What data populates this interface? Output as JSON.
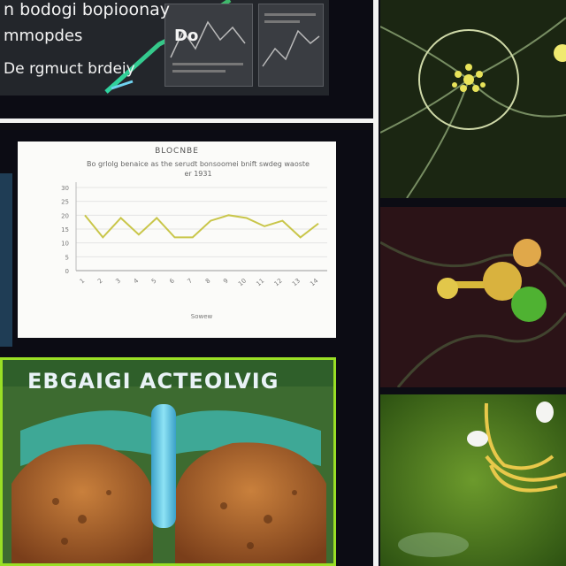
{
  "slide_top": {
    "line1": "n bodogi bopioonay",
    "line2": "mmopdes",
    "line3": "De rgmuct brdeiy",
    "badge": "Do"
  },
  "chart_slide": {
    "title": "BLOCNBE",
    "subtitle": "Bo grlolg benaice as the serudt bonsoomei bnift swdeg waoste er 1931",
    "xlabel": "Sowew"
  },
  "chart_data": {
    "type": "line",
    "title": "BLOCNBE",
    "xlabel": "Sowew",
    "ylabel": "",
    "categories": [
      "1",
      "2",
      "3",
      "4",
      "5",
      "6",
      "7",
      "8",
      "9",
      "10",
      "11",
      "12",
      "13",
      "14"
    ],
    "values": [
      20,
      12,
      19,
      13,
      19,
      12,
      12,
      18,
      20,
      19,
      16,
      18,
      12,
      17
    ],
    "ylim": [
      0,
      30
    ],
    "y_ticks": [
      "0",
      "5",
      "10",
      "15",
      "20",
      "25",
      "30"
    ],
    "color": "#c9c64a",
    "grid": true
  },
  "poster": {
    "heading": "EBGAIGI ACTEOLVIG"
  },
  "colors": {
    "poster_border": "#9adf25",
    "chart_line": "#c9c64a"
  }
}
